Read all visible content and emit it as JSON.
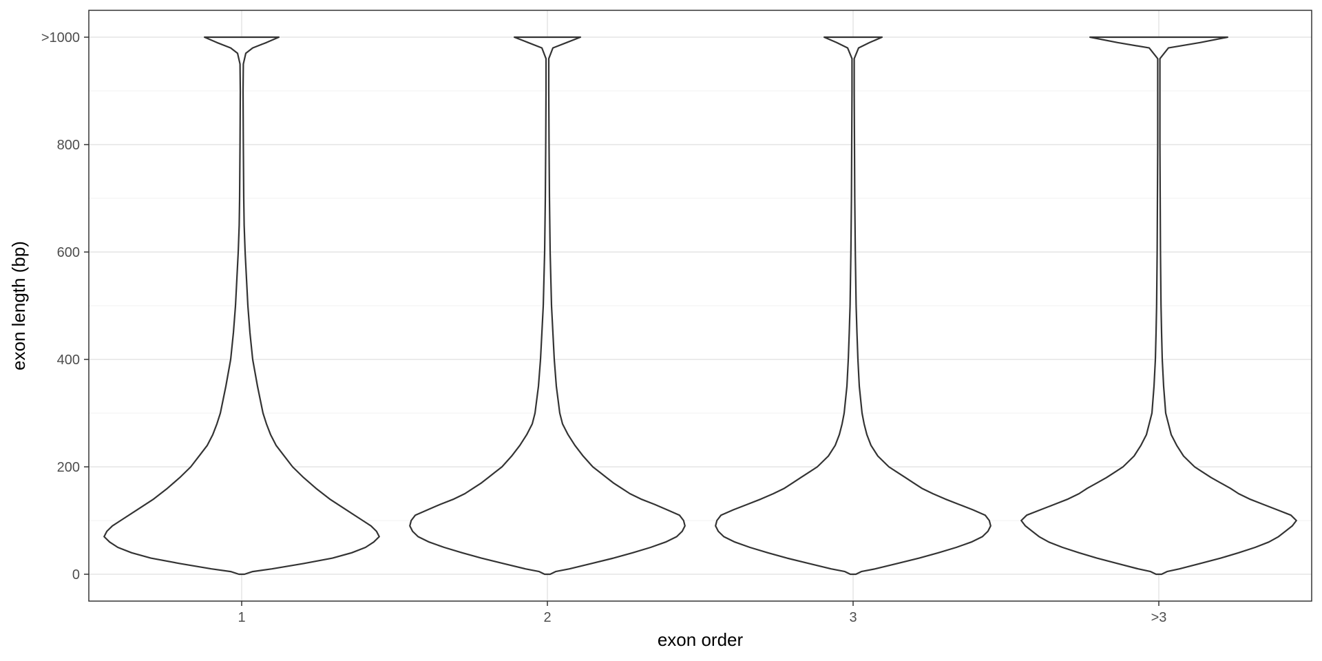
{
  "chart_data": {
    "type": "violin",
    "xlabel": "exon order",
    "ylabel": "exon length (bp)",
    "categories": [
      "1",
      "2",
      "3",
      ">3"
    ],
    "ylim": [
      -50,
      1050
    ],
    "yticks": [
      {
        "value": 0,
        "label": "0"
      },
      {
        "value": 200,
        "label": "200"
      },
      {
        "value": 400,
        "label": "400"
      },
      {
        "value": 600,
        "label": "600"
      },
      {
        "value": 800,
        "label": "800"
      },
      {
        "value": 1000,
        "label": ">1000"
      }
    ],
    "grid": true,
    "series": [
      {
        "category": "1",
        "density": [
          [
            0,
            0.02
          ],
          [
            5,
            0.08
          ],
          [
            10,
            0.22
          ],
          [
            20,
            0.45
          ],
          [
            30,
            0.66
          ],
          [
            40,
            0.8
          ],
          [
            50,
            0.9
          ],
          [
            60,
            0.96
          ],
          [
            70,
            1.0
          ],
          [
            80,
            0.98
          ],
          [
            90,
            0.94
          ],
          [
            100,
            0.88
          ],
          [
            120,
            0.76
          ],
          [
            140,
            0.64
          ],
          [
            160,
            0.54
          ],
          [
            180,
            0.45
          ],
          [
            200,
            0.37
          ],
          [
            220,
            0.31
          ],
          [
            240,
            0.25
          ],
          [
            260,
            0.21
          ],
          [
            280,
            0.18
          ],
          [
            300,
            0.155
          ],
          [
            350,
            0.115
          ],
          [
            400,
            0.08
          ],
          [
            450,
            0.06
          ],
          [
            500,
            0.045
          ],
          [
            550,
            0.035
          ],
          [
            600,
            0.025
          ],
          [
            650,
            0.018
          ],
          [
            700,
            0.015
          ],
          [
            800,
            0.012
          ],
          [
            900,
            0.01
          ],
          [
            950,
            0.012
          ],
          [
            970,
            0.03
          ],
          [
            980,
            0.08
          ],
          [
            990,
            0.18
          ],
          [
            1000,
            0.27
          ]
        ]
      },
      {
        "category": "2",
        "density": [
          [
            0,
            0.02
          ],
          [
            5,
            0.06
          ],
          [
            10,
            0.16
          ],
          [
            20,
            0.32
          ],
          [
            30,
            0.48
          ],
          [
            40,
            0.62
          ],
          [
            50,
            0.75
          ],
          [
            60,
            0.86
          ],
          [
            70,
            0.94
          ],
          [
            80,
            0.98
          ],
          [
            90,
            1.0
          ],
          [
            100,
            0.99
          ],
          [
            110,
            0.96
          ],
          [
            120,
            0.87
          ],
          [
            130,
            0.78
          ],
          [
            140,
            0.68
          ],
          [
            150,
            0.6
          ],
          [
            160,
            0.54
          ],
          [
            170,
            0.48
          ],
          [
            180,
            0.43
          ],
          [
            190,
            0.38
          ],
          [
            200,
            0.33
          ],
          [
            220,
            0.26
          ],
          [
            240,
            0.2
          ],
          [
            260,
            0.15
          ],
          [
            280,
            0.11
          ],
          [
            300,
            0.09
          ],
          [
            350,
            0.065
          ],
          [
            400,
            0.05
          ],
          [
            450,
            0.04
          ],
          [
            500,
            0.03
          ],
          [
            550,
            0.025
          ],
          [
            600,
            0.02
          ],
          [
            700,
            0.015
          ],
          [
            800,
            0.012
          ],
          [
            900,
            0.01
          ],
          [
            960,
            0.01
          ],
          [
            980,
            0.04
          ],
          [
            990,
            0.14
          ],
          [
            1000,
            0.24
          ]
        ]
      },
      {
        "category": "3",
        "density": [
          [
            0,
            0.02
          ],
          [
            5,
            0.06
          ],
          [
            10,
            0.16
          ],
          [
            20,
            0.32
          ],
          [
            30,
            0.48
          ],
          [
            40,
            0.62
          ],
          [
            50,
            0.75
          ],
          [
            60,
            0.86
          ],
          [
            70,
            0.94
          ],
          [
            80,
            0.98
          ],
          [
            90,
            1.0
          ],
          [
            100,
            0.99
          ],
          [
            110,
            0.96
          ],
          [
            120,
            0.87
          ],
          [
            130,
            0.77
          ],
          [
            140,
            0.67
          ],
          [
            150,
            0.58
          ],
          [
            160,
            0.5
          ],
          [
            170,
            0.44
          ],
          [
            180,
            0.38
          ],
          [
            190,
            0.32
          ],
          [
            200,
            0.26
          ],
          [
            220,
            0.18
          ],
          [
            240,
            0.13
          ],
          [
            260,
            0.1
          ],
          [
            280,
            0.08
          ],
          [
            300,
            0.065
          ],
          [
            350,
            0.045
          ],
          [
            400,
            0.035
          ],
          [
            450,
            0.028
          ],
          [
            500,
            0.022
          ],
          [
            600,
            0.016
          ],
          [
            700,
            0.012
          ],
          [
            800,
            0.01
          ],
          [
            900,
            0.008
          ],
          [
            960,
            0.008
          ],
          [
            980,
            0.04
          ],
          [
            990,
            0.12
          ],
          [
            1000,
            0.21
          ]
        ]
      },
      {
        "category": ">3",
        "density": [
          [
            0,
            0.02
          ],
          [
            5,
            0.06
          ],
          [
            10,
            0.15
          ],
          [
            20,
            0.3
          ],
          [
            30,
            0.45
          ],
          [
            40,
            0.58
          ],
          [
            50,
            0.7
          ],
          [
            60,
            0.8
          ],
          [
            70,
            0.87
          ],
          [
            80,
            0.92
          ],
          [
            90,
            0.97
          ],
          [
            100,
            1.0
          ],
          [
            110,
            0.96
          ],
          [
            120,
            0.86
          ],
          [
            130,
            0.76
          ],
          [
            140,
            0.66
          ],
          [
            150,
            0.58
          ],
          [
            160,
            0.52
          ],
          [
            170,
            0.45
          ],
          [
            180,
            0.38
          ],
          [
            190,
            0.32
          ],
          [
            200,
            0.26
          ],
          [
            220,
            0.18
          ],
          [
            240,
            0.13
          ],
          [
            260,
            0.09
          ],
          [
            280,
            0.07
          ],
          [
            300,
            0.05
          ],
          [
            350,
            0.035
          ],
          [
            400,
            0.025
          ],
          [
            450,
            0.02
          ],
          [
            500,
            0.016
          ],
          [
            600,
            0.012
          ],
          [
            700,
            0.01
          ],
          [
            800,
            0.008
          ],
          [
            900,
            0.008
          ],
          [
            960,
            0.008
          ],
          [
            980,
            0.07
          ],
          [
            990,
            0.3
          ],
          [
            1000,
            0.5
          ]
        ]
      }
    ]
  }
}
